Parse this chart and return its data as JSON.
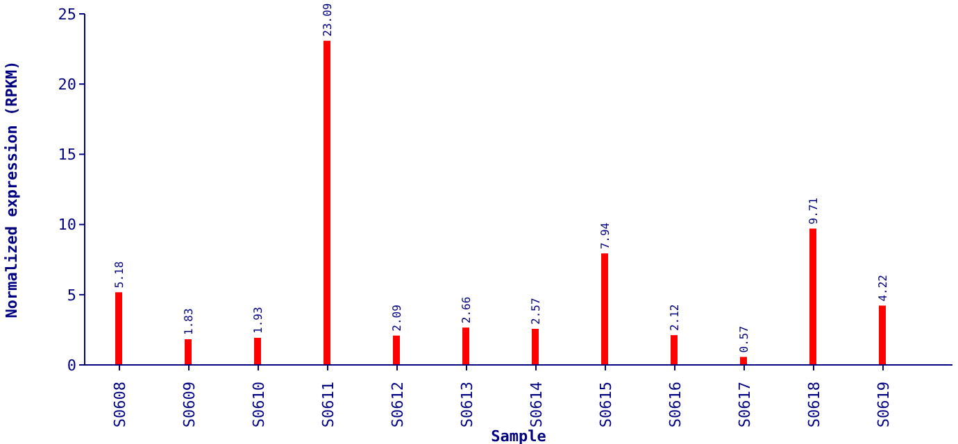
{
  "chart_data": {
    "type": "bar",
    "xlabel": "Sample",
    "ylabel": "Normalized expression (RPKM)",
    "categories": [
      "S0608",
      "S0609",
      "S0610",
      "S0611",
      "S0612",
      "S0613",
      "S0614",
      "S0615",
      "S0616",
      "S0617",
      "S0618",
      "S0619"
    ],
    "values": [
      5.18,
      1.83,
      1.93,
      23.09,
      2.09,
      2.66,
      2.57,
      7.94,
      2.12,
      0.57,
      9.71,
      4.22
    ],
    "color": "#ff0000",
    "ylim": [
      0,
      25
    ],
    "yticks": [
      0,
      5,
      10,
      15,
      20,
      25
    ],
    "grid": false,
    "data_labels": true
  }
}
